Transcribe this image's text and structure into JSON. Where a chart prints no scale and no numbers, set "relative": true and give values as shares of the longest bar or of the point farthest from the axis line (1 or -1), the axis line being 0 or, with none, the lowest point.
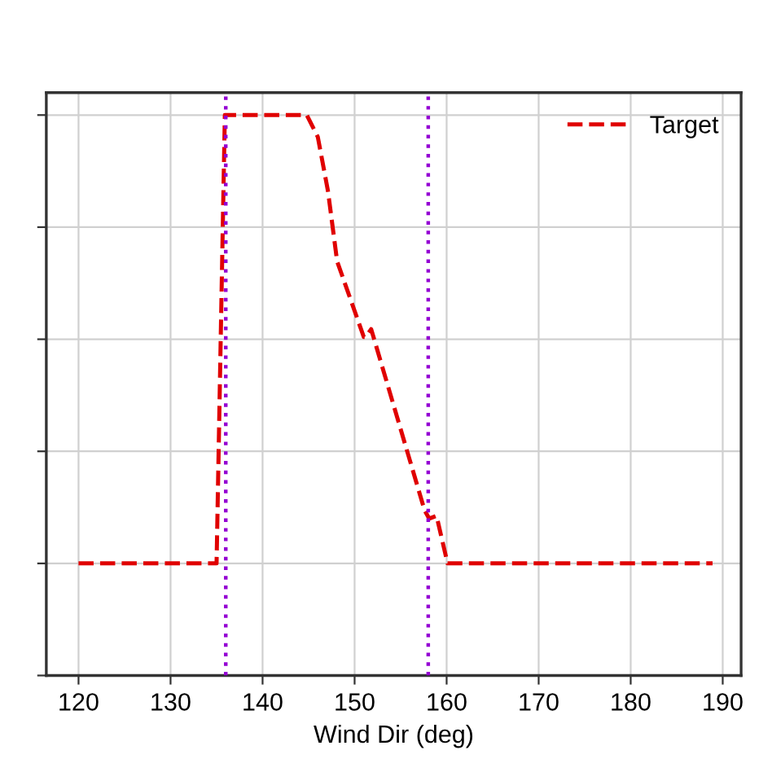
{
  "chart_data": {
    "type": "line",
    "xlabel": "Wind Dir (deg)",
    "relative": true,
    "xlim": [
      116.5,
      192
    ],
    "xticks": [
      120,
      130,
      140,
      150,
      160,
      170,
      180,
      190
    ],
    "series": [
      {
        "name": "Target",
        "color": "#e00000",
        "x": [
          120,
          135.0,
          135.9,
          144.8,
          146.0,
          147.1,
          148.1,
          151.0,
          151.2,
          151.8,
          157.6,
          158.1,
          158.9,
          160.1,
          188.9
        ],
        "values": [
          0.2,
          0.2,
          1.0,
          1.0,
          0.961,
          0.865,
          0.739,
          0.604,
          0.604,
          0.618,
          0.295,
          0.28,
          0.285,
          0.2,
          0.2
        ]
      }
    ],
    "ref_lines": [
      {
        "axis": "x",
        "value": 136,
        "color": "#9400d3",
        "line_style": "dotted"
      },
      {
        "axis": "x",
        "value": 158,
        "color": "#9400d3",
        "line_style": "dotted"
      }
    ],
    "line_style": "dashed",
    "marker": "none",
    "grid": true,
    "legend": "top right"
  }
}
